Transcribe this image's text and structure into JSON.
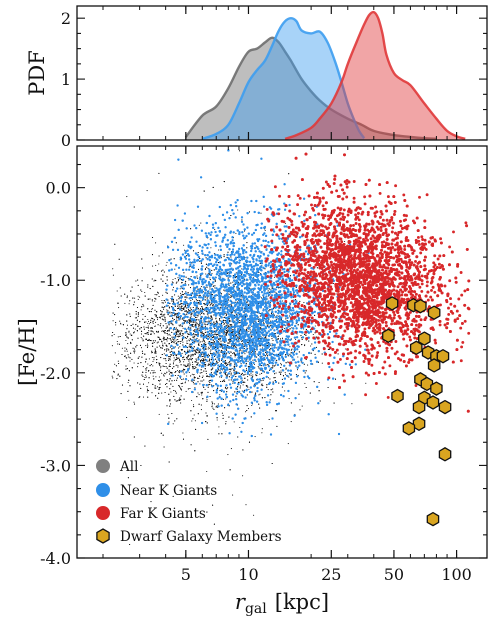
{
  "chart_data": [
    {
      "type": "area",
      "panel": "top",
      "ylabel": "PDF",
      "ylim": [
        0,
        2.2
      ],
      "yticks": [
        "0",
        "1",
        "2"
      ],
      "xlim": [
        1.5,
        140
      ],
      "xscale": "log",
      "series": [
        {
          "name": "All",
          "color": "#6e6e6e",
          "x": [
            5,
            6,
            7,
            8,
            9,
            10,
            11,
            12,
            13,
            14,
            15,
            16,
            18,
            20,
            22,
            25,
            30,
            35,
            40,
            50,
            60,
            70,
            80
          ],
          "y": [
            0.05,
            0.4,
            0.55,
            0.85,
            1.2,
            1.45,
            1.5,
            1.6,
            1.68,
            1.6,
            1.45,
            1.3,
            1.0,
            0.8,
            0.65,
            0.5,
            0.35,
            0.25,
            0.15,
            0.08,
            0.05,
            0.03,
            0.02
          ]
        },
        {
          "name": "Near K Giants",
          "color": "#3d9df0",
          "x": [
            6,
            7,
            8,
            9,
            10,
            11,
            12,
            13,
            14,
            15,
            16,
            17,
            18,
            20,
            22,
            24,
            26,
            28,
            30,
            32,
            34,
            36
          ],
          "y": [
            0.02,
            0.1,
            0.25,
            0.6,
            0.95,
            1.15,
            1.3,
            1.55,
            1.8,
            1.95,
            2.0,
            1.95,
            1.8,
            1.75,
            1.78,
            1.6,
            1.3,
            0.95,
            0.6,
            0.35,
            0.15,
            0.03
          ]
        },
        {
          "name": "Far K Giants",
          "color": "#e0383a",
          "x": [
            15,
            17,
            20,
            22,
            25,
            28,
            30,
            33,
            36,
            38,
            40,
            42,
            44,
            46,
            50,
            55,
            60,
            70,
            80,
            90,
            100,
            110
          ],
          "y": [
            0.02,
            0.08,
            0.2,
            0.35,
            0.6,
            0.95,
            1.25,
            1.6,
            1.9,
            2.05,
            2.1,
            2.0,
            1.75,
            1.4,
            1.1,
            0.98,
            0.9,
            0.6,
            0.35,
            0.15,
            0.06,
            0.02
          ]
        }
      ]
    },
    {
      "type": "scatter",
      "panel": "bottom",
      "xlabel": "r_gal [kpc]",
      "xlabel_main": "r",
      "xlabel_sub": "gal",
      "xlabel_unit": "[kpc]",
      "ylabel": "[Fe/H]",
      "xscale": "log",
      "xlim": [
        1.5,
        140
      ],
      "ylim": [
        -4.0,
        0.45
      ],
      "xticks": [
        5,
        10,
        25,
        50,
        100
      ],
      "xtick_labels": [
        "5",
        "10",
        "25",
        "50",
        "100"
      ],
      "yticks": [
        0.0,
        -1.0,
        -2.0,
        -3.0,
        -4.0
      ],
      "ytick_labels": [
        "0.0",
        "-1.0",
        "-2.0",
        "-3.0",
        "-4.0"
      ],
      "legend_position": "lower-left",
      "series": [
        {
          "name": "All",
          "color": "#111111",
          "legend_color": "#808080",
          "marker": "dot",
          "center_r": 6.5,
          "center_feh": -1.6,
          "spread_log_r": 0.22,
          "spread_feh": 0.35,
          "r_range": [
            2.2,
            40
          ],
          "n_shown": 6000
        },
        {
          "name": "Near K Giants",
          "color": "#2f8fe8",
          "marker": "dot",
          "center_r": 10,
          "center_feh": -1.3,
          "spread_log_r": 0.17,
          "spread_feh": 0.45,
          "r_range": [
            4,
            48
          ],
          "n_shown": 5500
        },
        {
          "name": "Far K Giants",
          "color": "#d8282a",
          "marker": "dot",
          "center_r": 35,
          "center_feh": -1.0,
          "spread_log_r": 0.2,
          "spread_feh": 0.4,
          "r_range": [
            12,
            115
          ],
          "n_shown": 4000
        },
        {
          "name": "Dwarf Galaxy Members",
          "color": "#d9a520",
          "marker": "hexagon",
          "points": [
            {
              "x": 49,
              "y": -1.25
            },
            {
              "x": 62,
              "y": -1.27
            },
            {
              "x": 67,
              "y": -1.28
            },
            {
              "x": 78,
              "y": -1.35
            },
            {
              "x": 47,
              "y": -1.6
            },
            {
              "x": 70,
              "y": -1.63
            },
            {
              "x": 64,
              "y": -1.73
            },
            {
              "x": 73,
              "y": -1.78
            },
            {
              "x": 80,
              "y": -1.82
            },
            {
              "x": 86,
              "y": -1.82
            },
            {
              "x": 78,
              "y": -1.92
            },
            {
              "x": 67,
              "y": -2.07
            },
            {
              "x": 72,
              "y": -2.12
            },
            {
              "x": 80,
              "y": -2.17
            },
            {
              "x": 52,
              "y": -2.25
            },
            {
              "x": 70,
              "y": -2.27
            },
            {
              "x": 77,
              "y": -2.32
            },
            {
              "x": 66,
              "y": -2.37
            },
            {
              "x": 88,
              "y": -2.37
            },
            {
              "x": 66,
              "y": -2.55
            },
            {
              "x": 59,
              "y": -2.6
            },
            {
              "x": 88,
              "y": -2.88
            },
            {
              "x": 77,
              "y": -3.58
            }
          ]
        }
      ]
    }
  ]
}
